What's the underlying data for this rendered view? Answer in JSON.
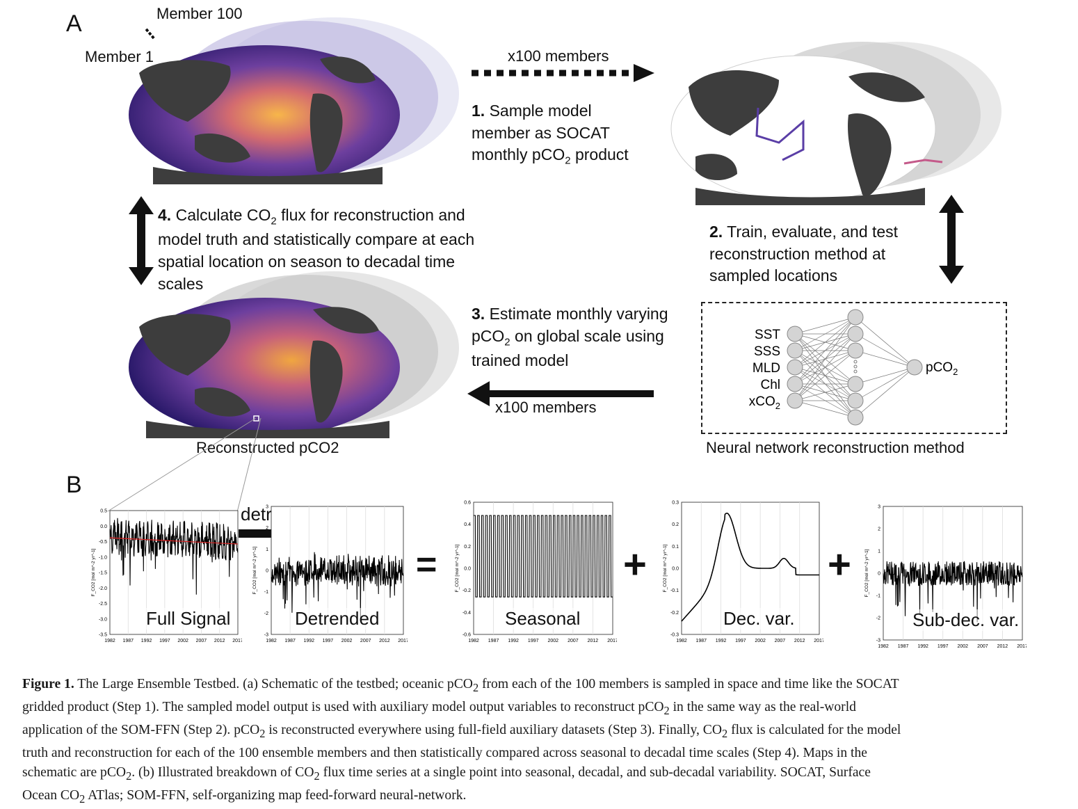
{
  "panel_a": {
    "letter": "A",
    "member_top_label": "Member 100",
    "member_bottom_label": "Member 1",
    "x100_members_top": "x100 members",
    "x100_members_bottom": "x100 members",
    "step1": {
      "num": "1.",
      "text_line1": "Sample model",
      "text_line2": "member as SOCAT",
      "text_line3_pre": "monthly pCO",
      "sub": "2",
      "text_line3_post": " product"
    },
    "step2": {
      "num": "2.",
      "text_line1": "Train, evaluate, and test",
      "text_line2": "reconstruction method at",
      "text_line3": "sampled locations"
    },
    "step3": {
      "num": "3.",
      "text_line1": "Estimate monthly varying",
      "text_line2_pre": "pCO",
      "sub": "2",
      "text_line2_post": " on global scale using",
      "text_line3": "trained model"
    },
    "step4": {
      "num": "4.",
      "text_line1_pre": "Calculate CO",
      "sub": "2",
      "text_line1_post": " flux for reconstruction and",
      "text_line2": "model truth and statistically compare at each",
      "text_line3": "spatial location on season to decadal time",
      "text_line4": "scales"
    },
    "reconstructed_label": "Reconstructed pCO2",
    "nn_caption": "Neural network reconstruction method",
    "nn_inputs": [
      "SST",
      "SSS",
      "MLD",
      "Chl",
      "xCO2"
    ],
    "nn_output": "pCO2",
    "colors": {
      "ocean_dark": "#2b1a6b",
      "ocean_mid": "#6d3f9e",
      "ocean_hot": "#f2a541",
      "land": "#3d3d3d"
    }
  },
  "panel_b": {
    "letter": "B",
    "detrend_label": "detrend",
    "equals": "=",
    "plus": "+",
    "x_ticks": [
      "1982",
      "1987",
      "1992",
      "1997",
      "2002",
      "2007",
      "2012",
      "2017"
    ],
    "ylabel": "F_CO2 [mol m^-2 yr^-1]",
    "plots": [
      {
        "title": "Full Signal",
        "y_ticks": [
          "0.5",
          "0.0",
          "-0.5",
          "-1.0",
          "-1.5",
          "-2.0",
          "-2.5",
          "-3.0",
          "-3.5"
        ]
      },
      {
        "title": "Detrended",
        "y_ticks": [
          "3",
          "2",
          "1",
          "0",
          "-1",
          "-2",
          "-3"
        ]
      },
      {
        "title": "Seasonal",
        "y_ticks": [
          "0.6",
          "0.4",
          "0.2",
          "0.0",
          "-0.2",
          "-0.4",
          "-0.6"
        ]
      },
      {
        "title": "Dec. var.",
        "y_ticks": [
          "0.3",
          "0.2",
          "0.1",
          "0.0",
          "-0.1",
          "-0.2",
          "-0.3"
        ]
      },
      {
        "title": "Sub-dec. var.",
        "y_ticks": [
          "3",
          "2",
          "1",
          "0",
          "-1",
          "-2",
          "-3"
        ]
      }
    ]
  },
  "caption": {
    "label": "Figure 1.",
    "l1_a": "  The Large Ensemble Testbed. (a) Schematic of the testbed; oceanic pCO",
    "l1_b": " from each of the 100 members is sampled in space and time like the SOCAT",
    "l2_a": "gridded product (Step 1). The sampled model output is used with auxiliary model output variables to reconstruct pCO",
    "l2_b": " in the same way as the real-world",
    "l3_a": "application of the SOM-FFN (Step 2). pCO",
    "l3_b": " is reconstructed everywhere using full-field auxiliary datasets (Step 3). Finally, CO",
    "l3_c": " flux is calculated for the model",
    "l4": "truth and reconstruction for each of the 100 ensemble members and then statistically compared across seasonal to decadal time scales (Step 4). Maps in the",
    "l5_a": "schematic are pCO",
    "l5_b": ". (b) Illustrated breakdown of CO",
    "l5_c": " flux time series at a single point into seasonal, decadal, and sub-decadal variability. SOCAT, Surface",
    "l6_a": "Ocean CO",
    "l6_b": " ATlas; SOM-FFN, self-organizing map feed-forward neural-network.",
    "sub": "2"
  }
}
